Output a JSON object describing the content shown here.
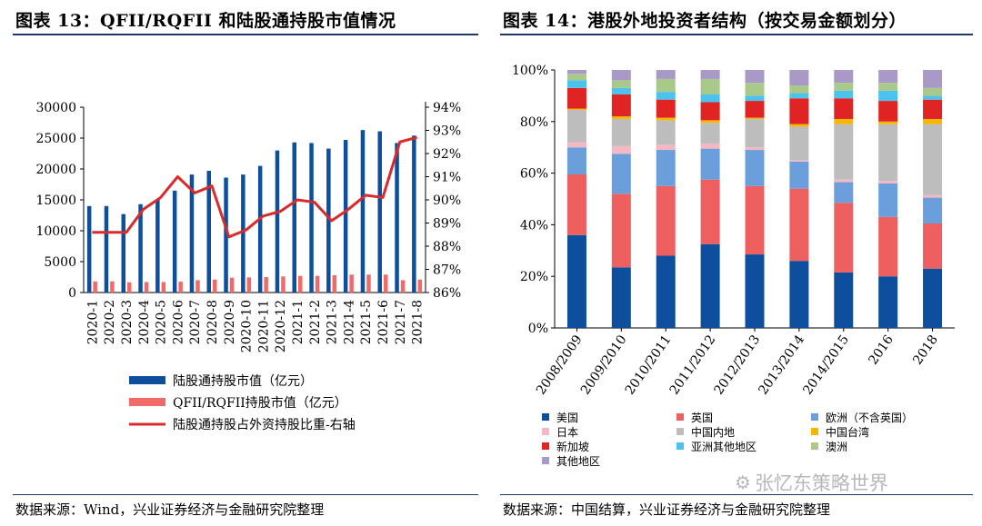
{
  "left": {
    "title": "图表 13：QFII/RQFII 和陆股通持股市值情况",
    "source": "数据来源：Wind，兴业证券经济与金融研究院整理"
  },
  "right": {
    "title": "图表 14：港股外地投资者结构（按交易金额划分）",
    "source": "数据来源：中国结算，兴业证券经济与金融研究院整理"
  },
  "watermark": "张忆东策略世界",
  "colors": {
    "navy": "#0d4f9c",
    "pink": "#f06a6a",
    "red": "#d92b2b",
    "rule": "#1f3864"
  },
  "chart_data": [
    {
      "type": "bar",
      "title": "QFII/RQFII 和陆股通持股市值情况",
      "categories": [
        "2020-1",
        "2020-2",
        "2020-3",
        "2020-4",
        "2020-5",
        "2020-6",
        "2020-7",
        "2020-8",
        "2020-9",
        "2020-10",
        "2020-11",
        "2020-12",
        "2021-1",
        "2021-2",
        "2021-3",
        "2021-4",
        "2021-5",
        "2021-6",
        "2021-7",
        "2021-8"
      ],
      "ylim": [
        0,
        30000
      ],
      "yticks": [
        "0",
        "5000",
        "10000",
        "15000",
        "20000",
        "25000",
        "30000"
      ],
      "y2lim": [
        86,
        94
      ],
      "y2ticks": [
        "86%",
        "87%",
        "88%",
        "89%",
        "90%",
        "91%",
        "92%",
        "93%",
        "94%"
      ],
      "series": [
        {
          "name": "陆股通持股市值（亿元）",
          "kind": "bar",
          "color": "#0d4f9c",
          "values": [
            14000,
            14000,
            12700,
            14300,
            15000,
            16500,
            19100,
            19700,
            18600,
            19100,
            20500,
            23000,
            24300,
            24200,
            23300,
            24700,
            26300,
            26100,
            24200,
            25400
          ]
        },
        {
          "name": "QFII/RQFII持股市值（亿元）",
          "kind": "bar",
          "color": "#f06a6a",
          "values": [
            1800,
            1800,
            1650,
            1700,
            1700,
            1750,
            2000,
            2100,
            2400,
            2450,
            2500,
            2600,
            2700,
            2700,
            2800,
            2900,
            2900,
            2900,
            2000,
            2100
          ]
        },
        {
          "name": "陆股通持股占外资持股比重-右轴",
          "kind": "line",
          "axis": "right",
          "color": "#d92b2b",
          "values": [
            88.6,
            88.6,
            88.6,
            89.6,
            90.1,
            91.0,
            90.3,
            90.6,
            88.4,
            88.7,
            89.3,
            89.5,
            90.0,
            89.9,
            89.1,
            89.6,
            90.2,
            90.1,
            92.5,
            92.7
          ]
        }
      ]
    },
    {
      "type": "bar",
      "stacked": true,
      "title": "港股外地投资者结构（按交易金额划分）",
      "categories": [
        "2008/2009",
        "2009/2010",
        "2010/2011",
        "2011/2012",
        "2012/2013",
        "2013/2014",
        "2014/2015",
        "2016",
        "2018"
      ],
      "ylim": [
        0,
        100
      ],
      "yticks": [
        "0%",
        "20%",
        "40%",
        "60%",
        "80%",
        "100%"
      ],
      "series": [
        {
          "name": "美国",
          "color": "#0d4f9c",
          "values": [
            36,
            23.5,
            28,
            32.5,
            28.5,
            26,
            21.5,
            20,
            23
          ]
        },
        {
          "name": "英国",
          "color": "#ee6060",
          "values": [
            23.5,
            28.5,
            27,
            25,
            26.5,
            28,
            27,
            23,
            17.5
          ]
        },
        {
          "name": "欧洲（不含英国）",
          "color": "#6a9fdc",
          "values": [
            10.5,
            15.5,
            14,
            12,
            14,
            10.5,
            8,
            13,
            10
          ]
        },
        {
          "name": "日本",
          "color": "#f4b8c2",
          "values": [
            2,
            3,
            2,
            2,
            1,
            0.5,
            1,
            1,
            1
          ]
        },
        {
          "name": "中国内地",
          "color": "#bdbdbd",
          "values": [
            12.5,
            10.5,
            9.5,
            8,
            11,
            13,
            21.5,
            22,
            27.5
          ]
        },
        {
          "name": "中国台湾",
          "color": "#f5b800",
          "values": [
            0.5,
            1,
            1,
            1,
            0.5,
            1,
            2,
            1,
            2
          ]
        },
        {
          "name": "新加坡",
          "color": "#e02424",
          "values": [
            8,
            8.5,
            7,
            7,
            6.5,
            10,
            8,
            8,
            7.5
          ]
        },
        {
          "name": "亚洲其他地区",
          "color": "#4cc3ee",
          "values": [
            3,
            2.5,
            3,
            3,
            2,
            2,
            3,
            4,
            1.5
          ]
        },
        {
          "name": "澳洲",
          "color": "#a9c98a",
          "values": [
            2.5,
            3,
            5,
            6,
            5,
            3,
            3,
            3,
            3
          ]
        },
        {
          "name": "其他地区",
          "color": "#a999c7",
          "values": [
            1.5,
            4,
            3.5,
            3.5,
            5,
            6,
            5,
            5,
            7
          ]
        }
      ]
    }
  ]
}
